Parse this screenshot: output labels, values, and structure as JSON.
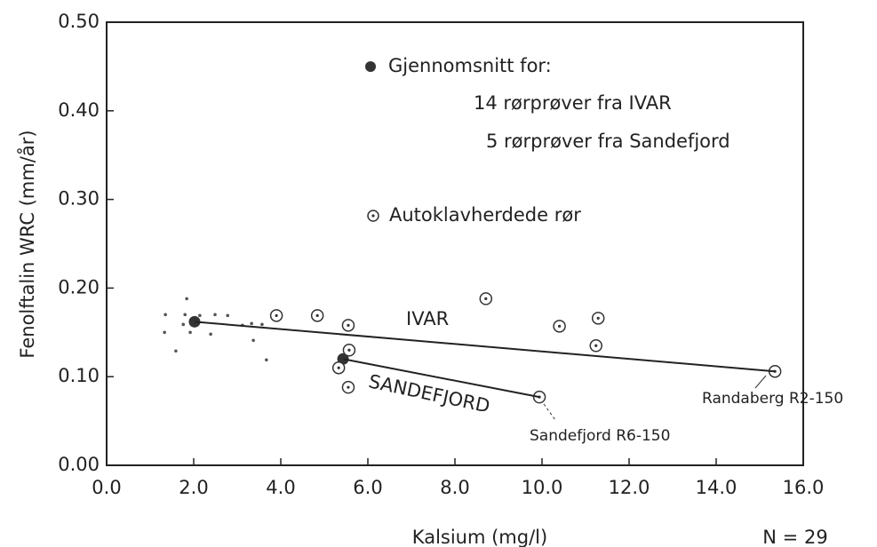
{
  "chart_data": {
    "type": "scatter",
    "xlabel": "Kalsium (mg/l)",
    "ylabel": "Fenolftalin WRC (mm/år)",
    "xlim": [
      0,
      16
    ],
    "ylim": [
      0,
      0.5
    ],
    "xticks": [
      {
        "value": 0,
        "label": "0.0"
      },
      {
        "value": 2,
        "label": "2.0"
      },
      {
        "value": 4,
        "label": "4.0"
      },
      {
        "value": 6,
        "label": "6.0"
      },
      {
        "value": 8,
        "label": "8.0"
      },
      {
        "value": 10,
        "label": "10.0"
      },
      {
        "value": 12,
        "label": "12.0"
      },
      {
        "value": 14,
        "label": "14.0"
      },
      {
        "value": 16,
        "label": "16.0"
      }
    ],
    "yticks": [
      {
        "value": 0,
        "label": "0.00"
      },
      {
        "value": 0.1,
        "label": "0.10"
      },
      {
        "value": 0.2,
        "label": "0.20"
      },
      {
        "value": 0.3,
        "label": "0.30"
      },
      {
        "value": 0.4,
        "label": "0.40"
      },
      {
        "value": 0.5,
        "label": "0.50"
      }
    ],
    "series": [
      {
        "name": "Gjennomsnitt for:",
        "marker": "filled",
        "color": "#333333",
        "x": [
          2.02,
          5.43
        ],
        "values": [
          0.162,
          0.12
        ]
      },
      {
        "name": "Autoklavherdede rør",
        "marker": "circled",
        "color": "#333333",
        "x": [
          3.9,
          4.84,
          5.55,
          5.57,
          5.33,
          5.55,
          8.71,
          10.4,
          11.29,
          11.24,
          9.94,
          15.35
        ],
        "values": [
          0.169,
          0.169,
          0.158,
          0.13,
          0.11,
          0.088,
          0.188,
          0.157,
          0.166,
          0.135,
          0.077,
          0.106
        ]
      },
      {
        "marker": "dot",
        "color": "#555555",
        "x": [
          1.35,
          1.33,
          1.59,
          1.84,
          1.8,
          1.76,
          1.92,
          2.14,
          2.39,
          2.49,
          2.78,
          3.12,
          3.33,
          3.37,
          3.57,
          3.67
        ],
        "values": [
          0.17,
          0.15,
          0.129,
          0.188,
          0.17,
          0.159,
          0.15,
          0.169,
          0.148,
          0.17,
          0.169,
          0.158,
          0.16,
          0.141,
          0.159,
          0.119
        ]
      },
      {
        "name": "IVAR",
        "marker": "line",
        "color": "#222222",
        "x": [
          2.02,
          15.35
        ],
        "values": [
          0.162,
          0.106
        ]
      },
      {
        "name": "SANDEFJORD",
        "marker": "line",
        "color": "#222222",
        "x": [
          5.43,
          9.94
        ],
        "values": [
          0.12,
          0.077
        ]
      }
    ],
    "legend_notes": [
      "14 rørprøver fra IVAR",
      "5 rørprøver fra Sandefjord"
    ],
    "annotations": [
      "Randaberg R2-150",
      "Sandefjord R6-150",
      "N = 29"
    ]
  }
}
